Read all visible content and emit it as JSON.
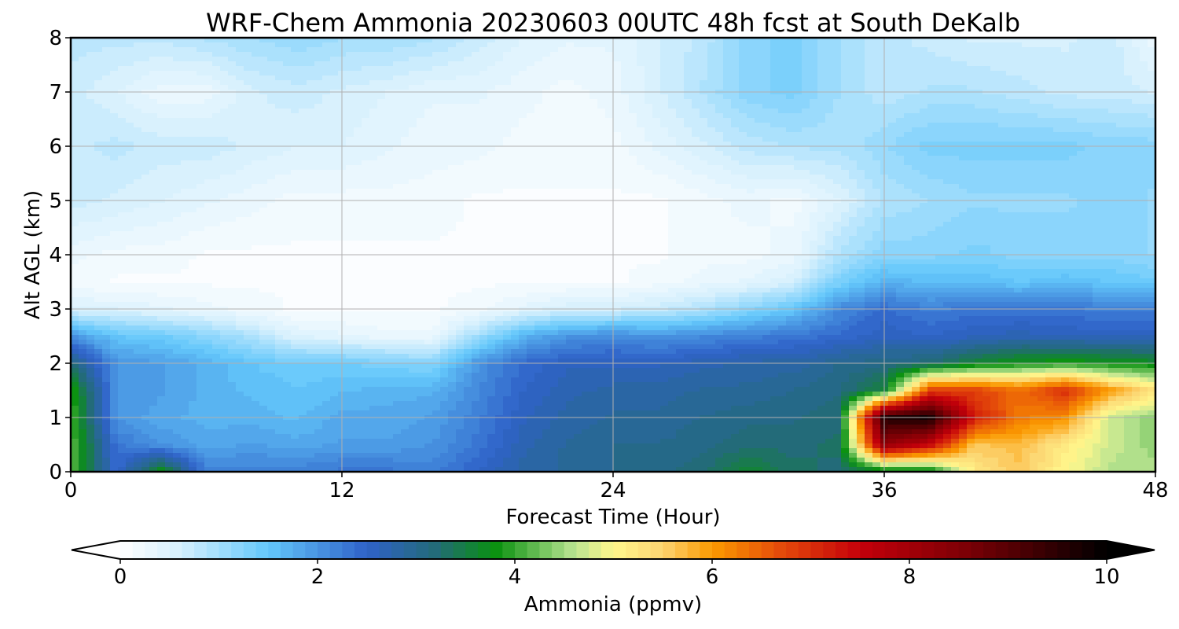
{
  "chart_data": {
    "type": "heatmap",
    "title": "WRF-Chem Ammonia  20230603 00UTC 48h fcst at South DeKalb",
    "xlabel": "Forecast Time (Hour)",
    "ylabel": "Alt AGL (km)",
    "xlim": [
      0,
      48
    ],
    "ylim": [
      0,
      8
    ],
    "xticks": [
      0,
      12,
      24,
      36,
      48
    ],
    "yticks": [
      0,
      1,
      2,
      3,
      4,
      5,
      6,
      7,
      8
    ],
    "grid": true,
    "x": [
      0,
      2,
      4,
      6,
      8,
      10,
      12,
      14,
      16,
      18,
      20,
      22,
      24,
      26,
      28,
      30,
      32,
      34,
      36,
      38,
      40,
      42,
      44,
      46,
      48
    ],
    "y": [
      0,
      0.5,
      1,
      1.5,
      2,
      2.5,
      3,
      3.5,
      4,
      5,
      6,
      7,
      8
    ],
    "z": [
      [
        4.2,
        2.4,
        3.8,
        2.2,
        2.2,
        2.2,
        2.3,
        2.3,
        2.2,
        2.5,
        2.8,
        2.9,
        3.0,
        3.1,
        3.2,
        3.6,
        3.3,
        3.2,
        3.5,
        3.6,
        5.2,
        5.6,
        5.0,
        4.6,
        4.6
      ],
      [
        4.2,
        2.3,
        2.0,
        1.8,
        1.9,
        1.8,
        1.9,
        1.9,
        2.0,
        2.3,
        2.7,
        2.9,
        3.0,
        3.0,
        3.1,
        3.2,
        3.2,
        3.3,
        8.3,
        7.5,
        5.6,
        5.7,
        5.2,
        4.7,
        4.4
      ],
      [
        4.1,
        2.0,
        1.8,
        1.7,
        1.7,
        1.6,
        1.8,
        1.8,
        1.9,
        2.2,
        2.6,
        2.8,
        2.9,
        2.9,
        3.0,
        3.1,
        3.1,
        3.2,
        9.6,
        9.8,
        7.2,
        6.3,
        6.1,
        4.7,
        4.4
      ],
      [
        4.0,
        2.0,
        1.9,
        1.7,
        1.6,
        1.5,
        1.6,
        1.7,
        1.7,
        2.1,
        2.5,
        2.7,
        2.8,
        2.8,
        2.9,
        2.9,
        3.0,
        3.1,
        3.6,
        6.8,
        6.8,
        6.4,
        7.0,
        6.0,
        5.3
      ],
      [
        3.2,
        2.0,
        1.9,
        1.7,
        1.5,
        1.4,
        1.4,
        1.3,
        1.2,
        2.0,
        2.4,
        2.6,
        2.6,
        2.6,
        2.7,
        2.8,
        2.8,
        3.0,
        3.1,
        3.2,
        3.6,
        3.8,
        3.9,
        3.8,
        3.7
      ],
      [
        2.0,
        1.5,
        1.4,
        1.2,
        0.9,
        0.5,
        0.4,
        0.3,
        0.3,
        1.0,
        1.7,
        2.0,
        2.1,
        2.0,
        2.1,
        2.2,
        2.3,
        2.4,
        2.6,
        2.5,
        2.6,
        2.7,
        2.6,
        2.6,
        2.6
      ],
      [
        0.5,
        0.5,
        0.4,
        0.3,
        0.2,
        0.1,
        0.1,
        0.1,
        0.1,
        0.2,
        0.4,
        0.6,
        0.6,
        0.7,
        0.9,
        1.2,
        1.5,
        2.1,
        2.4,
        2.2,
        2.3,
        2.3,
        2.3,
        2.2,
        2.2
      ],
      [
        0.2,
        0.1,
        0.1,
        0.1,
        0.1,
        0.1,
        0.1,
        0.1,
        0.1,
        0.1,
        0.1,
        0.1,
        0.1,
        0.2,
        0.3,
        0.4,
        0.6,
        1.3,
        1.7,
        1.6,
        1.6,
        1.5,
        1.6,
        1.5,
        1.4
      ],
      [
        0.3,
        0.2,
        0.2,
        0.1,
        0.1,
        0.1,
        0.1,
        0.1,
        0.1,
        0.1,
        0.1,
        0.1,
        0.1,
        0.1,
        0.2,
        0.2,
        0.3,
        0.9,
        1.2,
        1.2,
        1.3,
        1.2,
        1.2,
        1.2,
        1.1
      ],
      [
        0.7,
        0.6,
        0.5,
        0.4,
        0.3,
        0.2,
        0.2,
        0.2,
        0.2,
        0.1,
        0.1,
        0.1,
        0.1,
        0.1,
        0.2,
        0.3,
        0.2,
        0.5,
        0.9,
        1.0,
        1.1,
        1.1,
        1.1,
        1.2,
        1.1
      ],
      [
        0.7,
        0.8,
        0.7,
        0.7,
        0.6,
        0.5,
        0.5,
        0.4,
        0.3,
        0.3,
        0.2,
        0.2,
        0.2,
        0.4,
        0.6,
        0.8,
        0.9,
        0.9,
        1.1,
        1.3,
        1.3,
        1.3,
        1.3,
        1.2,
        1.2
      ],
      [
        0.7,
        0.5,
        0.3,
        0.3,
        0.6,
        0.7,
        0.6,
        0.5,
        0.4,
        0.4,
        0.3,
        0.2,
        0.3,
        0.6,
        0.9,
        1.2,
        1.3,
        1.0,
        0.8,
        0.9,
        0.9,
        0.8,
        0.7,
        0.7,
        0.6
      ],
      [
        0.8,
        0.8,
        0.8,
        0.9,
        1.0,
        1.1,
        1.0,
        1.0,
        0.9,
        0.7,
        0.5,
        0.4,
        0.4,
        0.6,
        0.8,
        1.2,
        1.3,
        1.0,
        0.8,
        0.7,
        0.6,
        0.6,
        0.6,
        0.7,
        0.3
      ]
    ],
    "colorbar": {
      "label": "Ammonia  (ppmv)",
      "min": 0,
      "max": 10,
      "ticks": [
        0,
        2,
        4,
        6,
        8,
        10
      ],
      "extend": "both",
      "levels": 80,
      "colors": [
        {
          "v": 0.0,
          "c": "#ffffff"
        },
        {
          "v": 0.6,
          "c": "#d6f0fd"
        },
        {
          "v": 1.5,
          "c": "#63c7fb"
        },
        {
          "v": 2.5,
          "c": "#2f62c8"
        },
        {
          "v": 3.2,
          "c": "#236b78"
        },
        {
          "v": 3.8,
          "c": "#09910f"
        },
        {
          "v": 4.6,
          "c": "#b9e491"
        },
        {
          "v": 5.0,
          "c": "#fff78c"
        },
        {
          "v": 5.5,
          "c": "#fcd370"
        },
        {
          "v": 6.0,
          "c": "#fb9a00"
        },
        {
          "v": 6.7,
          "c": "#e44a0a"
        },
        {
          "v": 7.5,
          "c": "#c4000a"
        },
        {
          "v": 8.6,
          "c": "#7a0005"
        },
        {
          "v": 10.0,
          "c": "#000000"
        }
      ]
    }
  }
}
